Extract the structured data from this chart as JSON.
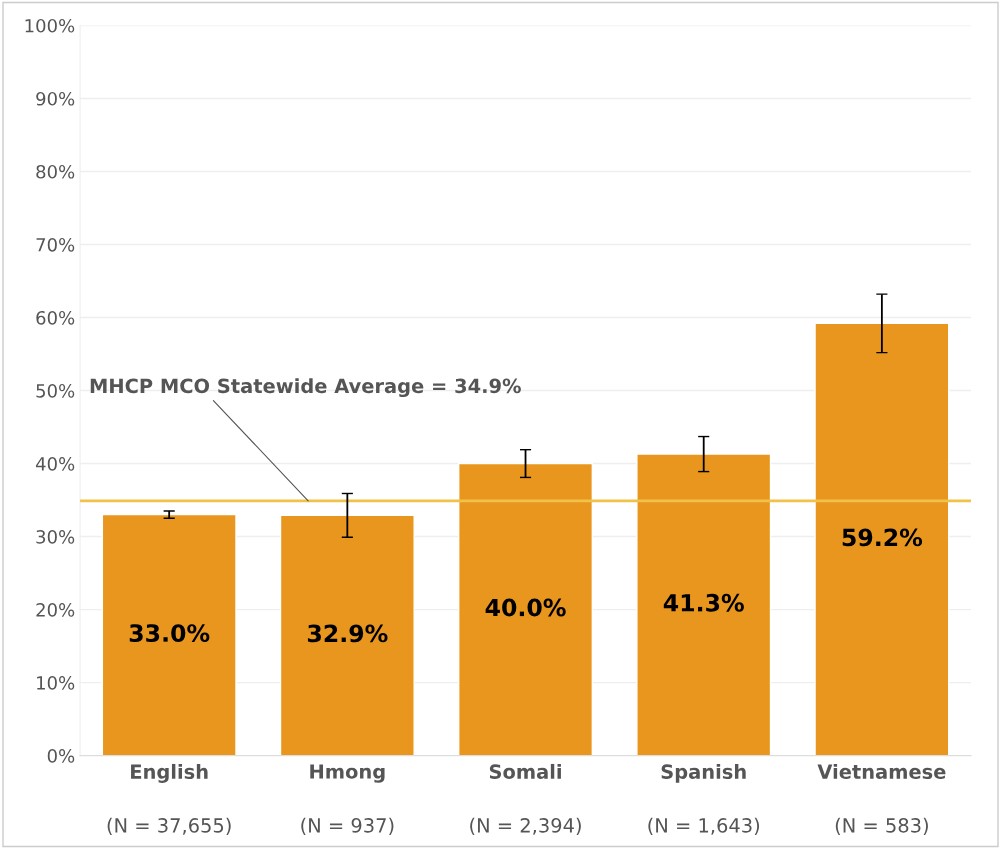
{
  "chart_data": {
    "type": "bar",
    "categories": [
      "English\n(N = 37,655)",
      "Hmong\n(N = 937)",
      "Somali\n(N = 2,394)",
      "Spanish\n(N = 1,643)",
      "Vietnamese\n(N = 583)"
    ],
    "values": [
      33.0,
      32.9,
      40.0,
      41.3,
      59.2
    ],
    "errors": [
      0.5,
      3.0,
      1.9,
      2.4,
      4.0
    ],
    "color": "#e8961e",
    "value_labels": [
      "33.0%",
      "32.9%",
      "40.0%",
      "41.3%",
      "59.2%"
    ],
    "ylim": [
      0,
      100
    ],
    "yticks": [
      {
        "value": 0,
        "label": "0%"
      },
      {
        "value": 10,
        "label": "10%"
      },
      {
        "value": 20,
        "label": "20%"
      },
      {
        "value": 30,
        "label": "30%"
      },
      {
        "value": 40,
        "label": "40%"
      },
      {
        "value": 50,
        "label": "50%"
      },
      {
        "value": 60,
        "label": "60%"
      },
      {
        "value": 70,
        "label": "70%"
      },
      {
        "value": 80,
        "label": "80%"
      },
      {
        "value": 90,
        "label": "90%"
      },
      {
        "value": 100,
        "label": "100%"
      }
    ],
    "ref_lines": [
      {
        "axis": "y",
        "value": 34.9,
        "label": "MHCP MCO Statewide Average = 34.9%",
        "color": "#f0c24a"
      }
    ],
    "grid": "y"
  }
}
